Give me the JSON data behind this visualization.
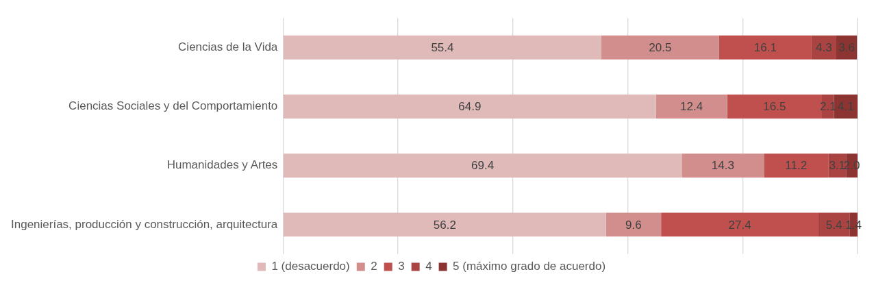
{
  "chart_data": {
    "type": "bar",
    "orientation": "horizontal",
    "stacked": true,
    "categories": [
      "Ciencias de la Vida",
      "Ciencias Sociales y del Comportamiento",
      "Humanidades y Artes",
      "Ingenierías, producción y construcción, arquitectura"
    ],
    "series": [
      {
        "name": "1 (desacuerdo)",
        "color": "#e0b9b9",
        "values": [
          55.4,
          64.9,
          69.4,
          56.2
        ]
      },
      {
        "name": "2",
        "color": "#d18e8d",
        "values": [
          20.5,
          12.4,
          14.3,
          9.6
        ]
      },
      {
        "name": "3",
        "color": "#c0504d",
        "values": [
          16.1,
          16.5,
          11.2,
          27.4
        ]
      },
      {
        "name": "4",
        "color": "#a94442",
        "values": [
          4.3,
          2.1,
          3.1,
          5.4
        ]
      },
      {
        "name": "5 (máximo grado de acuerdo)",
        "color": "#8c3432",
        "values": [
          3.6,
          4.1,
          2.0,
          1.4
        ],
        "value_labels": [
          "3.6",
          "4.1",
          "2.0",
          "1.4"
        ]
      }
    ],
    "xlim": [
      0,
      100
    ],
    "xticks": [
      {
        "value": 0,
        "label": null
      },
      {
        "value": 20,
        "label": null
      },
      {
        "value": 40,
        "label": null
      },
      {
        "value": 60,
        "label": null
      },
      {
        "value": 80,
        "label": null
      },
      {
        "value": 100,
        "label": null
      }
    ],
    "grid": "x",
    "tick_labels": "y",
    "data_labels": true,
    "legend": "bottom"
  }
}
